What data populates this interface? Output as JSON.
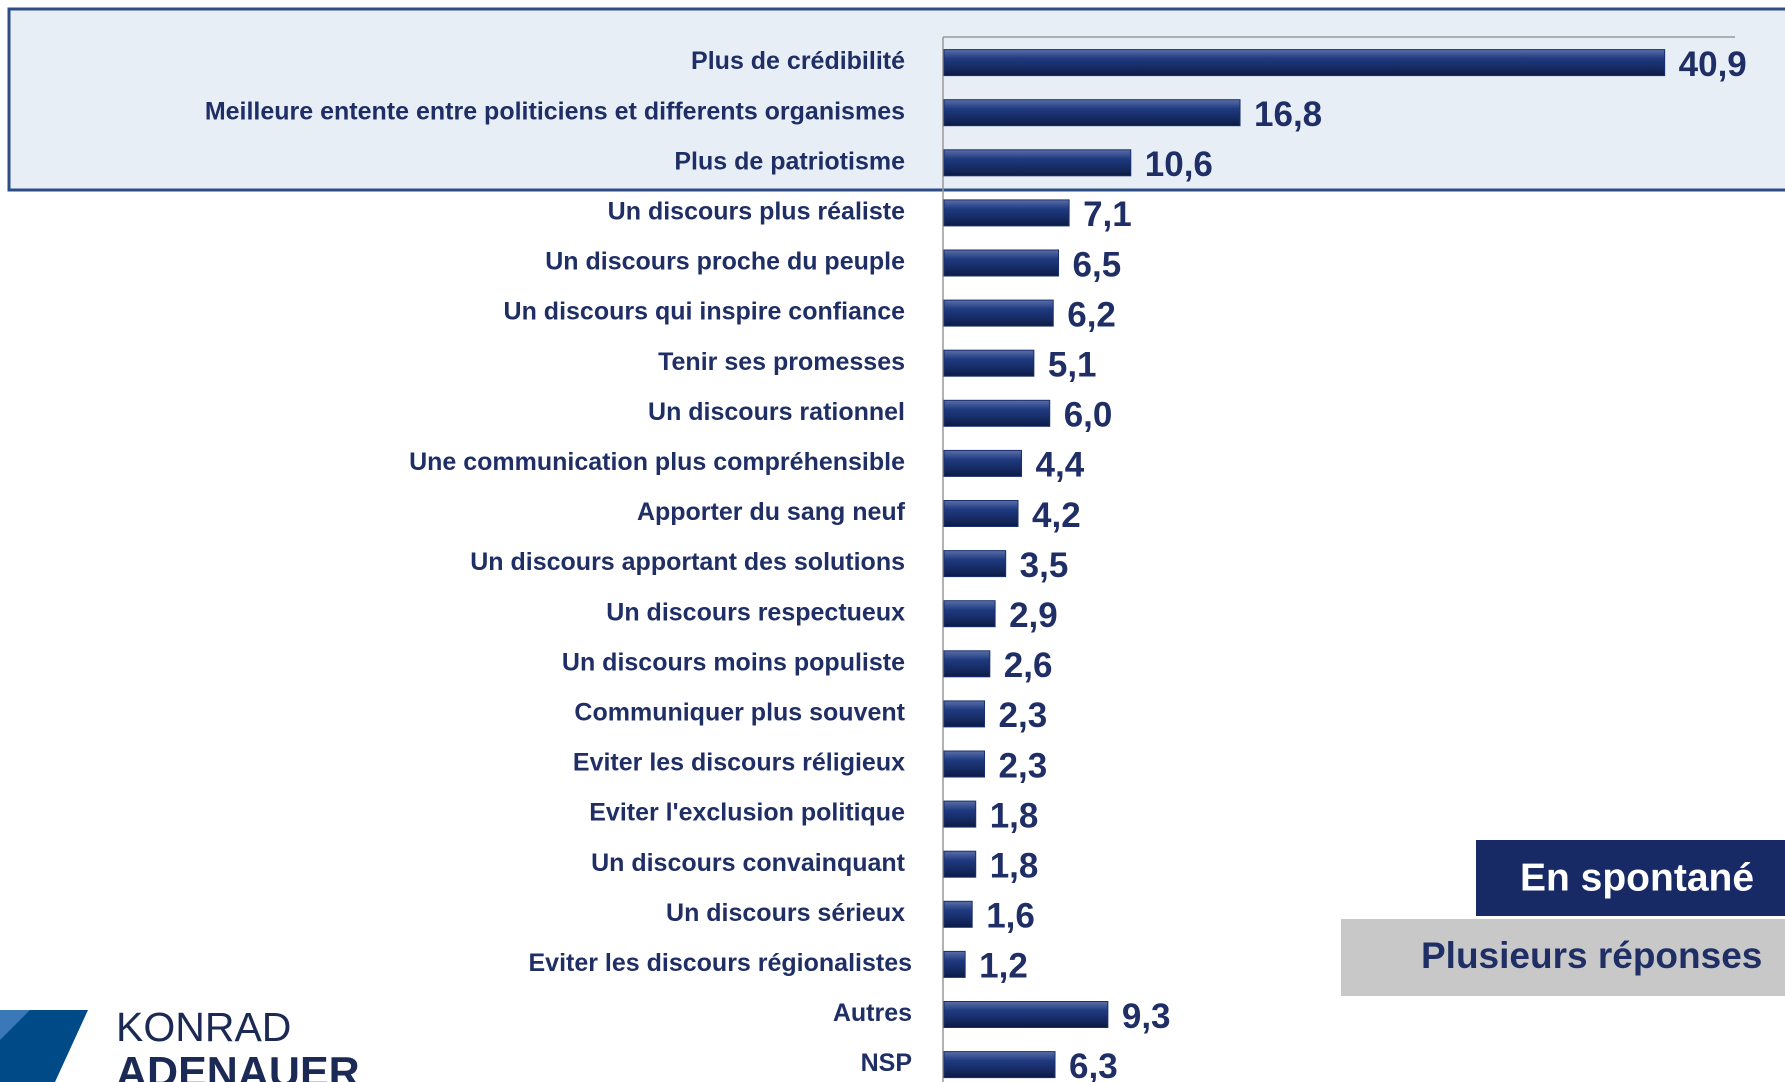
{
  "chart_data": {
    "type": "bar",
    "orientation": "horizontal",
    "categories": [
      "Plus de crédibilité",
      "Meilleure entente entre politiciens et differents organismes",
      "Plus de patriotisme",
      "Un discours plus réaliste",
      "Un discours proche du peuple",
      "Un discours qui inspire confiance",
      "Tenir ses promesses",
      "Un discours rationnel",
      "Une communication plus compréhensible",
      "Apporter du sang neuf",
      "Un discours apportant des solutions",
      "Un discours respectueux",
      "Un discours moins populiste",
      "Communiquer plus souvent",
      "Eviter les discours réligieux",
      "Eviter l'exclusion politique",
      "Un discours convainquant",
      "Un discours sérieux",
      "Eviter les discours régionalistes",
      "Autres",
      "NSP"
    ],
    "values": [
      40.9,
      16.8,
      10.6,
      7.1,
      6.5,
      6.2,
      5.1,
      6.0,
      4.4,
      4.2,
      3.5,
      2.9,
      2.6,
      2.3,
      2.3,
      1.8,
      1.8,
      1.6,
      1.2,
      9.3,
      6.3
    ],
    "value_labels": [
      "40,9",
      "16,8",
      "10,6",
      "7,1",
      "6,5",
      "6,2",
      "5,1",
      "6,0",
      "4,4",
      "4,2",
      "3,5",
      "2,9",
      "2,6",
      "2,3",
      "2,3",
      "1,8",
      "1,8",
      "1,6",
      "1,2",
      "9,3",
      "6,3"
    ],
    "color": "#1a2f6e",
    "annotations": [
      "En spontané",
      "Plusieurs réponses"
    ]
  },
  "logo": {
    "line1": "KONRAD",
    "line2": "ADENAUER"
  }
}
